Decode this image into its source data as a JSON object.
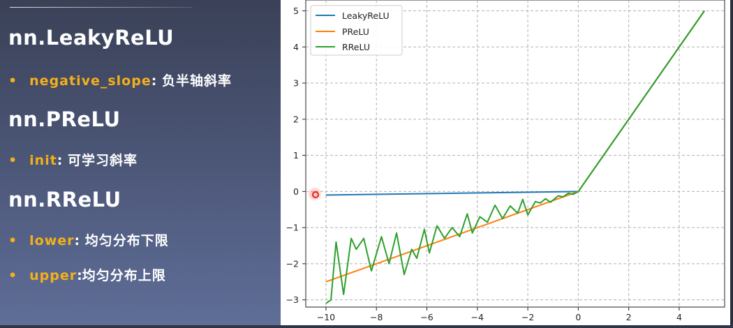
{
  "slide": {
    "bullet_char": "•",
    "colon": ":",
    "sections": [
      {
        "heading": "nn.LeakyReLU",
        "params": [
          {
            "key": "negative_slope",
            "desc": " 负半轴斜率"
          }
        ]
      },
      {
        "heading": "nn.PReLU",
        "params": [
          {
            "key": "init",
            "desc": " 可学习斜率"
          }
        ]
      },
      {
        "heading": "nn.RReLU",
        "params": [
          {
            "key": "lower",
            "desc": " 均匀分布下限"
          },
          {
            "key": "upper",
            "desc": "均匀分布上限"
          }
        ]
      }
    ]
  },
  "colors": {
    "highlight": "#f3b01a",
    "leaky": "#1f77b4",
    "prelu": "#ff7f0e",
    "rrelu": "#2ca02c"
  },
  "chart_data": {
    "type": "line",
    "title": "",
    "xlabel": "",
    "ylabel": "",
    "xlim": [
      -10.8,
      5.8
    ],
    "ylim": [
      -3.2,
      5.3
    ],
    "xticks": [
      -10,
      -8,
      -6,
      -4,
      -2,
      0,
      2,
      4
    ],
    "yticks": [
      -3,
      -2,
      -1,
      0,
      1,
      2,
      3,
      4,
      5
    ],
    "xtick_labels": [
      "−10",
      "−8",
      "−6",
      "−4",
      "−2",
      "0",
      "2",
      "4"
    ],
    "ytick_labels": [
      "−3",
      "−2",
      "−1",
      "0",
      "1",
      "2",
      "3",
      "4",
      "5"
    ],
    "grid": true,
    "legend_position": "top-left",
    "series": [
      {
        "name": "LeakyReLU",
        "color": "#1f77b4",
        "x": [
          -10,
          0,
          5
        ],
        "y": [
          -0.1,
          0,
          5
        ]
      },
      {
        "name": "PReLU",
        "color": "#ff7f0e",
        "x": [
          -10,
          0,
          5
        ],
        "y": [
          -2.5,
          0,
          5
        ]
      },
      {
        "name": "RReLU",
        "color": "#2ca02c",
        "x": [
          -10,
          -9.8,
          -9.6,
          -9.3,
          -9.0,
          -8.8,
          -8.5,
          -8.2,
          -7.8,
          -7.5,
          -7.2,
          -6.9,
          -6.6,
          -6.4,
          -6.1,
          -5.9,
          -5.6,
          -5.3,
          -5.0,
          -4.7,
          -4.4,
          -4.2,
          -3.9,
          -3.6,
          -3.3,
          -3.0,
          -2.7,
          -2.4,
          -2.2,
          -2.0,
          -1.7,
          -1.5,
          -1.3,
          -1.1,
          -0.8,
          -0.6,
          -0.4,
          -0.2,
          0,
          2,
          5
        ],
        "y": [
          -3.1,
          -3.0,
          -1.4,
          -2.85,
          -1.3,
          -1.6,
          -1.3,
          -2.2,
          -1.25,
          -2.0,
          -1.15,
          -2.3,
          -1.6,
          -1.85,
          -1.05,
          -1.7,
          -0.95,
          -1.3,
          -1.0,
          -1.25,
          -0.62,
          -1.15,
          -0.7,
          -0.85,
          -0.38,
          -0.75,
          -0.4,
          -0.6,
          -0.22,
          -0.65,
          -0.28,
          -0.32,
          -0.2,
          -0.3,
          -0.12,
          -0.15,
          -0.05,
          -0.08,
          0,
          2,
          5
        ]
      }
    ]
  }
}
